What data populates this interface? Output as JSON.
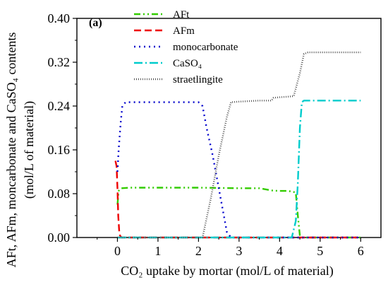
{
  "chart_data": {
    "type": "line",
    "panel_label": "(a)",
    "xlabel": "CO₂ uptake by mortar (mol/L of material)",
    "ylabel_line1": "AFt, AFm, moncarbonate and CaSO₄ contents",
    "ylabel_line2": "(mol/L of material)",
    "xlim": [
      -1,
      6.5
    ],
    "ylim": [
      0,
      0.4
    ],
    "xticks": [
      0,
      1,
      2,
      3,
      4,
      5,
      6
    ],
    "yticks": [
      0.0,
      0.08,
      0.16,
      0.24,
      0.32,
      0.4
    ],
    "ytick_labels": [
      "0.00",
      "0.08",
      "0.16",
      "0.24",
      "0.32",
      "0.40"
    ],
    "grid": false,
    "legend_position": "top-center",
    "series": [
      {
        "name": "AFt",
        "color": "#33cc00",
        "dash": "9,4,2,4,2,4",
        "x": [
          0,
          0.03,
          0.1,
          0.3,
          1.0,
          2.0,
          3.0,
          3.5,
          3.8,
          4.0,
          4.2,
          4.3,
          4.4,
          4.45,
          4.5,
          4.55,
          6
        ],
        "y": [
          0.06,
          0.085,
          0.09,
          0.091,
          0.091,
          0.091,
          0.09,
          0.09,
          0.086,
          0.085,
          0.085,
          0.084,
          0.082,
          0.04,
          0.003,
          0,
          0
        ]
      },
      {
        "name": "AFm",
        "color": "#ee0000",
        "dash": "10,5",
        "x": [
          -0.05,
          -0.02,
          0.0,
          0.02,
          0.05,
          0.1,
          6
        ],
        "y": [
          0.14,
          0.13,
          0.09,
          0.04,
          0.005,
          0,
          0
        ]
      },
      {
        "name": "monocarbonate",
        "color": "#0000cc",
        "dash": "2,5",
        "x": [
          0,
          0.03,
          0.08,
          0.12,
          0.2,
          0.5,
          1.0,
          1.5,
          2.0,
          2.1,
          2.2,
          2.35,
          2.5,
          2.6,
          2.7,
          2.8,
          6
        ],
        "y": [
          0.12,
          0.16,
          0.21,
          0.24,
          0.247,
          0.247,
          0.247,
          0.247,
          0.247,
          0.24,
          0.2,
          0.15,
          0.09,
          0.05,
          0.01,
          0,
          0
        ]
      },
      {
        "name": "CaSO₄",
        "color": "#00cccc",
        "dash": "12,4,2,4",
        "x": [
          0,
          4.0,
          4.3,
          4.4,
          4.45,
          4.5,
          4.55,
          4.6,
          5.0,
          6
        ],
        "y": [
          0,
          0,
          0,
          0.03,
          0.1,
          0.2,
          0.247,
          0.25,
          0.25,
          0.25
        ]
      },
      {
        "name": "straetlingite",
        "color": "#555555",
        "dash": "1,2",
        "x": [
          0,
          2.1,
          2.3,
          2.5,
          2.7,
          2.8,
          3.0,
          3.5,
          3.8,
          3.85,
          4.0,
          4.2,
          4.35,
          4.5,
          4.6,
          4.7,
          5.0,
          6
        ],
        "y": [
          0,
          0,
          0.07,
          0.15,
          0.22,
          0.247,
          0.248,
          0.25,
          0.25,
          0.255,
          0.256,
          0.257,
          0.258,
          0.3,
          0.335,
          0.338,
          0.338,
          0.338
        ]
      }
    ]
  }
}
